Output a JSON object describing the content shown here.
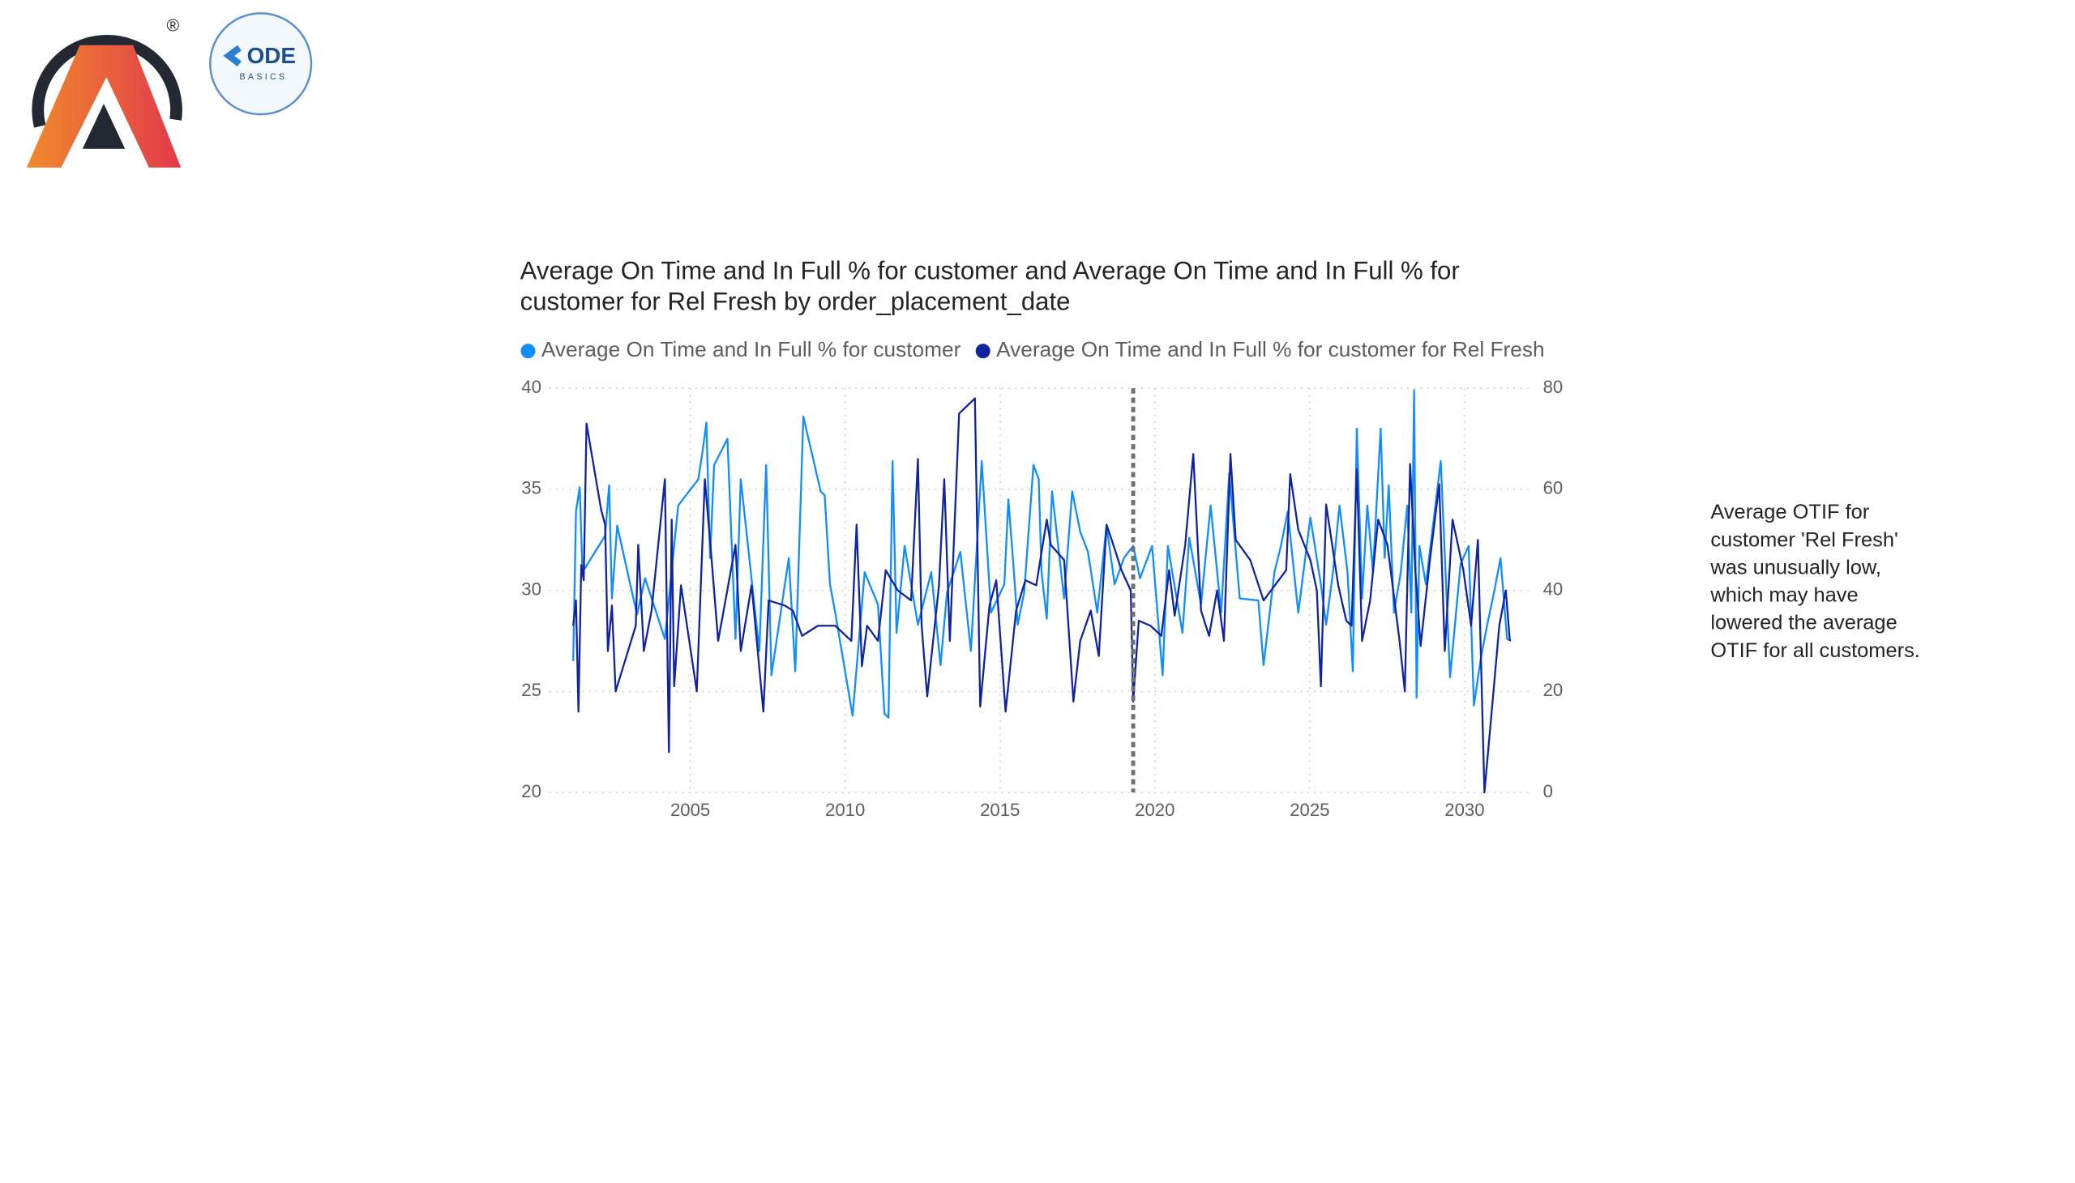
{
  "logos": {
    "registered": "®",
    "codebasics": "ODE",
    "codebasics_sub": "BASICS"
  },
  "chart_data": {
    "type": "line",
    "title": [
      "Average On Time and In Full % for customer and Average On Time and In Full % for",
      "customer for Rel Fresh by order_placement_date"
    ],
    "xlim": [
      2000.45,
      2032.1
    ],
    "xticks": [
      2005,
      2010,
      2015,
      2020,
      2025,
      2030
    ],
    "ylim": [
      20,
      40
    ],
    "yticks": [
      20,
      25,
      30,
      35,
      40
    ],
    "y2lim": [
      0,
      80
    ],
    "y2ticks": [
      0,
      20,
      40,
      60,
      80
    ],
    "grid": true,
    "legend": "top-left",
    "reference_x": 2019.3,
    "series": [
      {
        "name": "Average On Time and In Full % for customer",
        "color": "#118dff",
        "axis": "y",
        "x": [
          2001.22,
          2001.31,
          2001.43,
          2001.52,
          2002.25,
          2002.38,
          2002.47,
          2002.64,
          2003.28,
          2003.54,
          2004.18,
          2004.61,
          2005.26,
          2005.39,
          2005.52,
          2005.64,
          2005.77,
          2006.2,
          2006.46,
          2006.63,
          2007.23,
          2007.45,
          2007.62,
          2008.18,
          2008.39,
          2008.65,
          2009.21,
          2009.34,
          2009.51,
          2009.68,
          2010.24,
          2010.63,
          2011.06,
          2011.27,
          2011.4,
          2011.53,
          2011.66,
          2011.92,
          2012.35,
          2012.78,
          2013.08,
          2013.29,
          2013.72,
          2014.06,
          2014.41,
          2014.71,
          2015.14,
          2015.27,
          2015.44,
          2015.57,
          2015.78,
          2016.08,
          2016.25,
          2016.34,
          2016.51,
          2016.68,
          2017.07,
          2017.33,
          2017.59,
          2017.84,
          2018.14,
          2018.44,
          2018.7,
          2019.0,
          2019.3,
          2019.52,
          2019.91,
          2020.25,
          2020.42,
          2020.89,
          2021.11,
          2021.49,
          2021.8,
          2022.14,
          2022.4,
          2022.74,
          2023.34,
          2023.51,
          2023.86,
          2024.07,
          2024.29,
          2024.63,
          2025.02,
          2025.36,
          2025.53,
          2025.75,
          2025.96,
          2026.22,
          2026.39,
          2026.52,
          2026.69,
          2026.86,
          2027.04,
          2027.29,
          2027.42,
          2027.55,
          2027.72,
          2027.94,
          2028.15,
          2028.28,
          2028.37,
          2028.45,
          2028.54,
          2028.75,
          2029.01,
          2029.23,
          2029.53,
          2029.87,
          2030.13,
          2030.3,
          2030.52,
          2030.73,
          2030.95,
          2031.16,
          2031.37,
          2031.5
        ],
        "values": [
          26.5,
          33.9,
          35.1,
          30.9,
          32.7,
          35.2,
          29.6,
          33.2,
          28.8,
          30.6,
          27.6,
          34.2,
          35.5,
          36.8,
          38.3,
          31.6,
          36.2,
          37.5,
          27.6,
          35.5,
          27.0,
          36.2,
          25.8,
          31.6,
          26.0,
          38.6,
          34.9,
          34.7,
          30.3,
          28.9,
          23.8,
          30.9,
          29.3,
          23.9,
          23.7,
          36.4,
          27.9,
          32.2,
          28.3,
          30.9,
          26.3,
          29.9,
          31.9,
          27.0,
          36.4,
          28.9,
          30.3,
          34.5,
          31.1,
          28.3,
          29.9,
          36.2,
          35.5,
          30.9,
          28.6,
          34.9,
          29.6,
          34.9,
          32.9,
          31.9,
          28.9,
          33.2,
          30.3,
          31.6,
          32.2,
          30.6,
          32.2,
          25.8,
          32.2,
          27.9,
          32.6,
          29.3,
          34.2,
          28.9,
          35.8,
          29.6,
          29.5,
          26.3,
          30.9,
          32.2,
          33.9,
          28.9,
          33.6,
          30.3,
          28.3,
          30.9,
          34.2,
          30.9,
          26.0,
          38.0,
          29.6,
          34.2,
          30.9,
          38.0,
          31.6,
          35.2,
          28.9,
          30.9,
          34.2,
          28.9,
          39.9,
          24.7,
          32.2,
          30.3,
          33.6,
          36.4,
          25.7,
          31.3,
          32.2,
          24.3,
          26.6,
          28.3,
          29.9,
          31.6,
          27.6,
          27.5
        ]
      },
      {
        "name": "Average On Time and In Full % for customer for Rel Fresh",
        "color": "#12239e",
        "axis": "y2",
        "x": [
          2001.22,
          2001.31,
          2001.39,
          2001.48,
          2001.56,
          2001.65,
          2002.12,
          2002.25,
          2002.34,
          2002.47,
          2002.59,
          2003.24,
          2003.32,
          2003.5,
          2003.75,
          2004.18,
          2004.31,
          2004.4,
          2004.48,
          2004.7,
          2005.21,
          2005.47,
          2005.69,
          2005.9,
          2006.46,
          2006.63,
          2006.98,
          2007.36,
          2007.53,
          2008.05,
          2008.31,
          2008.61,
          2009.12,
          2009.68,
          2010.2,
          2010.37,
          2010.54,
          2010.71,
          2011.06,
          2011.31,
          2011.7,
          2012.13,
          2012.35,
          2012.47,
          2012.65,
          2013.03,
          2013.2,
          2013.38,
          2013.68,
          2014.19,
          2014.36,
          2014.66,
          2014.88,
          2015.18,
          2015.52,
          2015.82,
          2016.17,
          2016.51,
          2016.64,
          2017.07,
          2017.37,
          2017.59,
          2017.93,
          2018.19,
          2018.44,
          2018.66,
          2018.92,
          2019.22,
          2019.3,
          2019.48,
          2019.86,
          2020.21,
          2020.46,
          2020.64,
          2020.98,
          2021.24,
          2021.49,
          2021.75,
          2022.01,
          2022.23,
          2022.44,
          2022.61,
          2023.08,
          2023.51,
          2024.24,
          2024.37,
          2024.63,
          2025.02,
          2025.23,
          2025.36,
          2025.53,
          2025.92,
          2026.18,
          2026.35,
          2026.52,
          2026.69,
          2026.95,
          2027.21,
          2027.51,
          2027.9,
          2028.07,
          2028.24,
          2028.41,
          2028.58,
          2028.88,
          2029.18,
          2029.36,
          2029.61,
          2029.96,
          2030.21,
          2030.43,
          2030.64,
          2030.86,
          2031.12,
          2031.33,
          2031.46
        ],
        "values": [
          33,
          38,
          16,
          45,
          42,
          73,
          56,
          53,
          28,
          37,
          20,
          33,
          49,
          28,
          36,
          62,
          8,
          54,
          21,
          41,
          20,
          62,
          46,
          30,
          49,
          28,
          41,
          16,
          38,
          37,
          36,
          31,
          33,
          33,
          30,
          53,
          25,
          33,
          30,
          44,
          40,
          38,
          66,
          33,
          19,
          41,
          62,
          30,
          75,
          78,
          17,
          37,
          42,
          16,
          36,
          42,
          41,
          54,
          49,
          46,
          18,
          30,
          36,
          27,
          53,
          49,
          44,
          40,
          18,
          34,
          33,
          31,
          44,
          35,
          49,
          67,
          36,
          31,
          40,
          30,
          67,
          50,
          46,
          38,
          44,
          63,
          52,
          46,
          40,
          21,
          57,
          41,
          34,
          33,
          64,
          30,
          38,
          54,
          49,
          30,
          20,
          65,
          44,
          29,
          46,
          61,
          28,
          54,
          44,
          33,
          50,
          0,
          15,
          33,
          40,
          30
        ]
      }
    ],
    "annotation": [
      "Average OTIF for",
      "customer 'Rel Fresh'",
      "was unusually low,",
      "which may have",
      "lowered the average",
      "OTIF for all customers."
    ]
  }
}
